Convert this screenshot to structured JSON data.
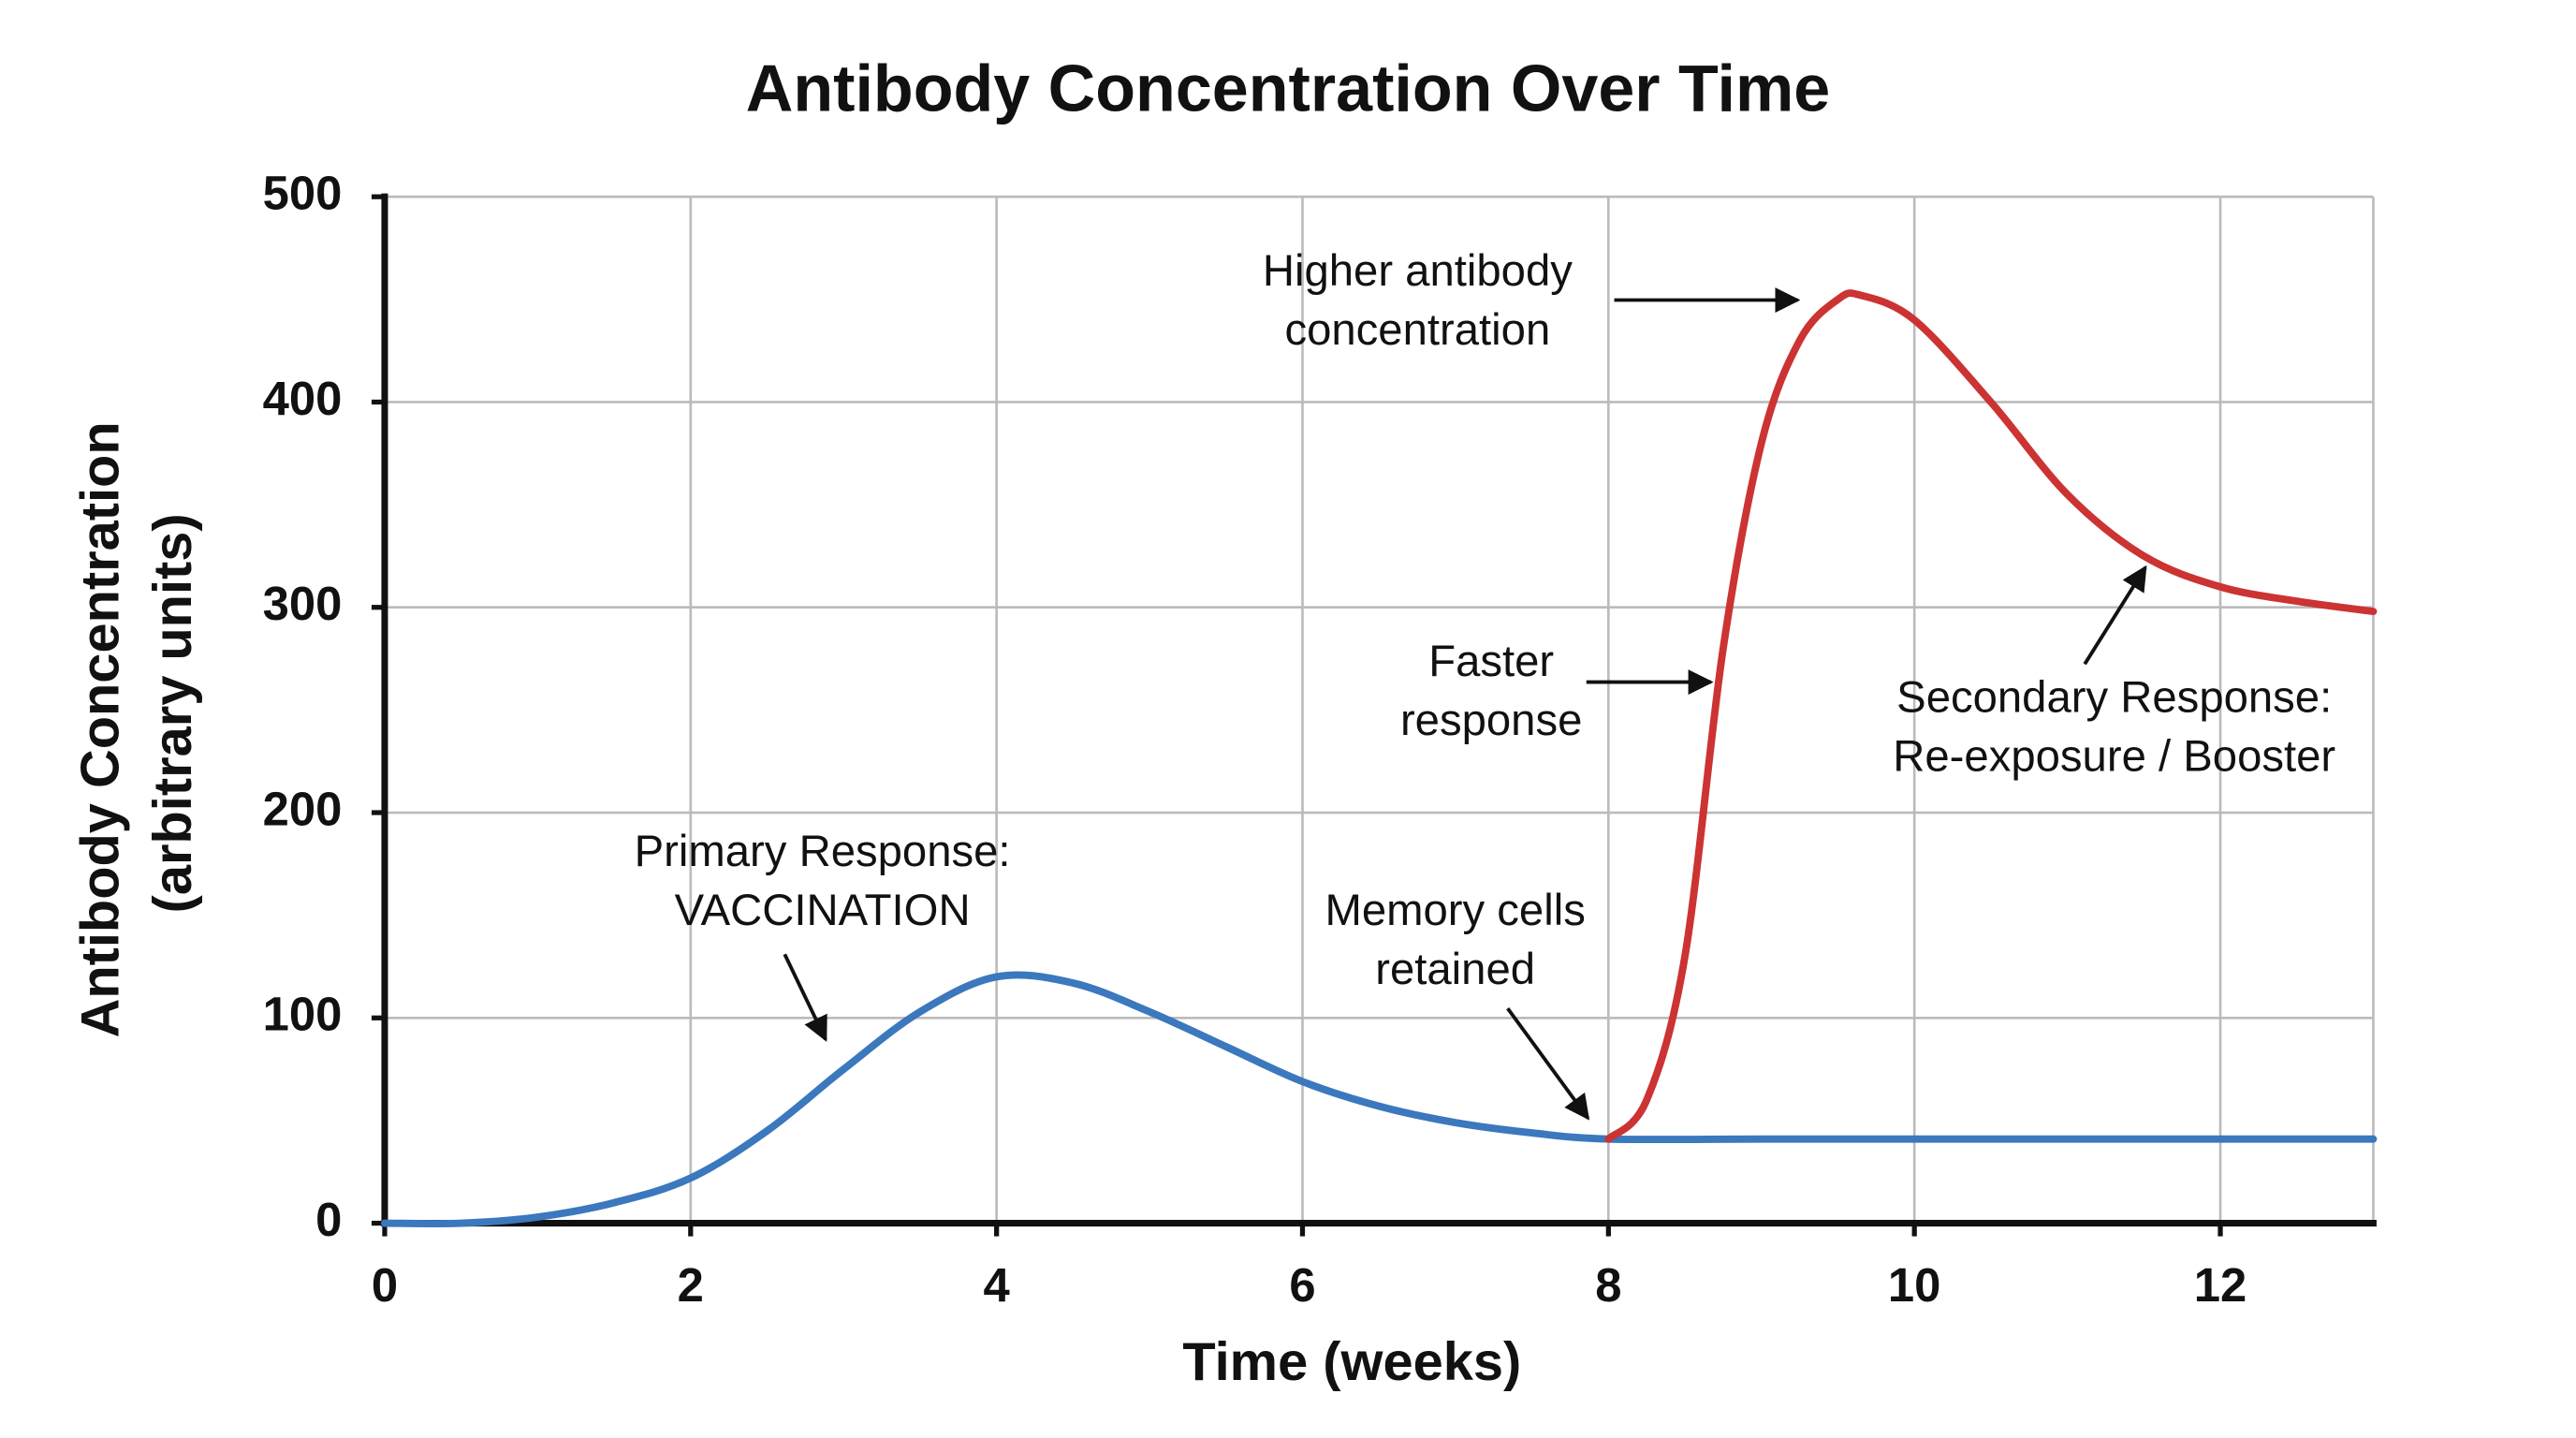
{
  "chart_data": {
    "type": "line",
    "title": "Antibody Concentration Over Time",
    "xlabel": "Time (weeks)",
    "ylabel": [
      "Antibody Concentration",
      "(arbitrary units)"
    ],
    "xlim": [
      0,
      13
    ],
    "xticks": [
      0,
      2,
      4,
      6,
      8,
      10,
      12
    ],
    "ylim": [
      0,
      500
    ],
    "yticks": [
      0,
      100,
      200,
      300,
      400,
      500
    ],
    "grid": true,
    "series": [
      {
        "color": "#3b78bd",
        "x": [
          0,
          0.5,
          1,
          1.5,
          2,
          2.5,
          3,
          3.5,
          4,
          4.5,
          5,
          5.5,
          6,
          6.5,
          7,
          7.5,
          8,
          9,
          10,
          11,
          12,
          13
        ],
        "values": [
          0,
          0,
          3,
          10,
          22,
          45,
          75,
          103,
          120,
          117,
          103,
          86,
          69,
          57,
          49,
          44,
          41,
          41,
          41,
          41,
          41,
          41
        ]
      },
      {
        "color": "#cc3333",
        "x": [
          8,
          8.25,
          8.5,
          8.75,
          9,
          9.25,
          9.5,
          9.65,
          10,
          10.5,
          11,
          11.5,
          12,
          12.5,
          13
        ],
        "values": [
          41,
          60,
          130,
          280,
          380,
          430,
          450,
          452,
          440,
          400,
          355,
          325,
          310,
          303,
          298
        ]
      }
    ],
    "annotations": [
      {
        "lines": [
          "Higher antibody",
          "concentration"
        ]
      },
      {
        "lines": [
          "Faster",
          "response"
        ]
      },
      {
        "lines": [
          "Secondary Response:",
          "Re-exposure / Booster"
        ]
      },
      {
        "lines": [
          "Primary Response:",
          "VACCINATION"
        ]
      },
      {
        "lines": [
          "Memory cells",
          "retained"
        ]
      }
    ]
  }
}
